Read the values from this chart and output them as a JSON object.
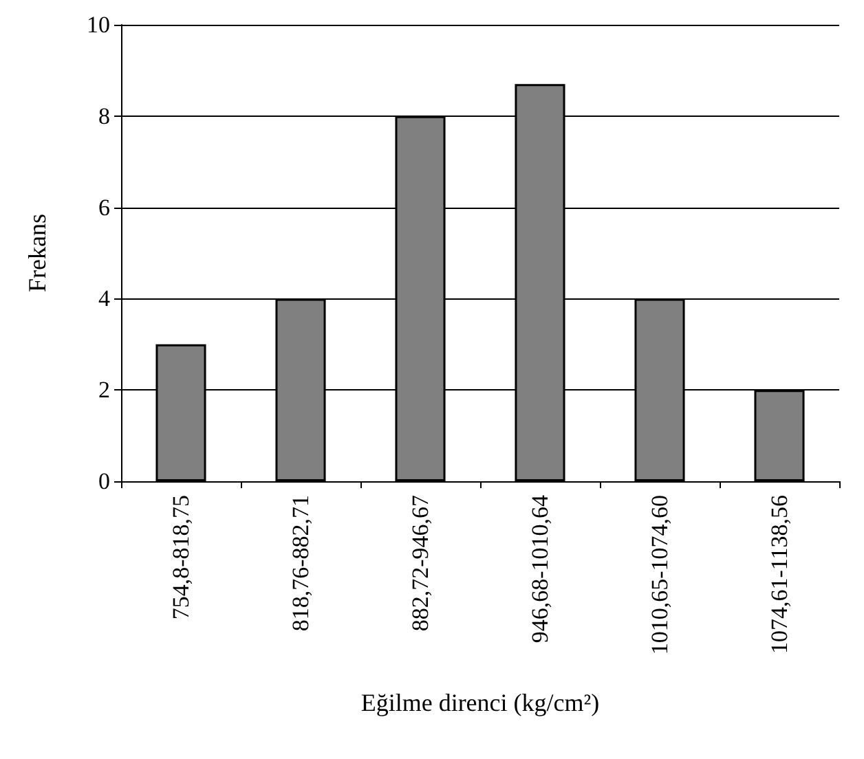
{
  "chart_data": {
    "type": "bar",
    "xlabel": "Eğilme direnci (kg/cm²)",
    "ylabel": "Frekans",
    "categories": [
      "754,8-818,75",
      "818,76-882,71",
      "882,72-946,67",
      "946,68-1010,64",
      "1010,65-1074,60",
      "1074,61-1138,56"
    ],
    "values": [
      3,
      4,
      8,
      8.7,
      4,
      2
    ],
    "color": "#808080",
    "ylim": [
      0,
      10
    ],
    "yticks": [
      0,
      2,
      4,
      6,
      8,
      10
    ],
    "grid": "y"
  }
}
